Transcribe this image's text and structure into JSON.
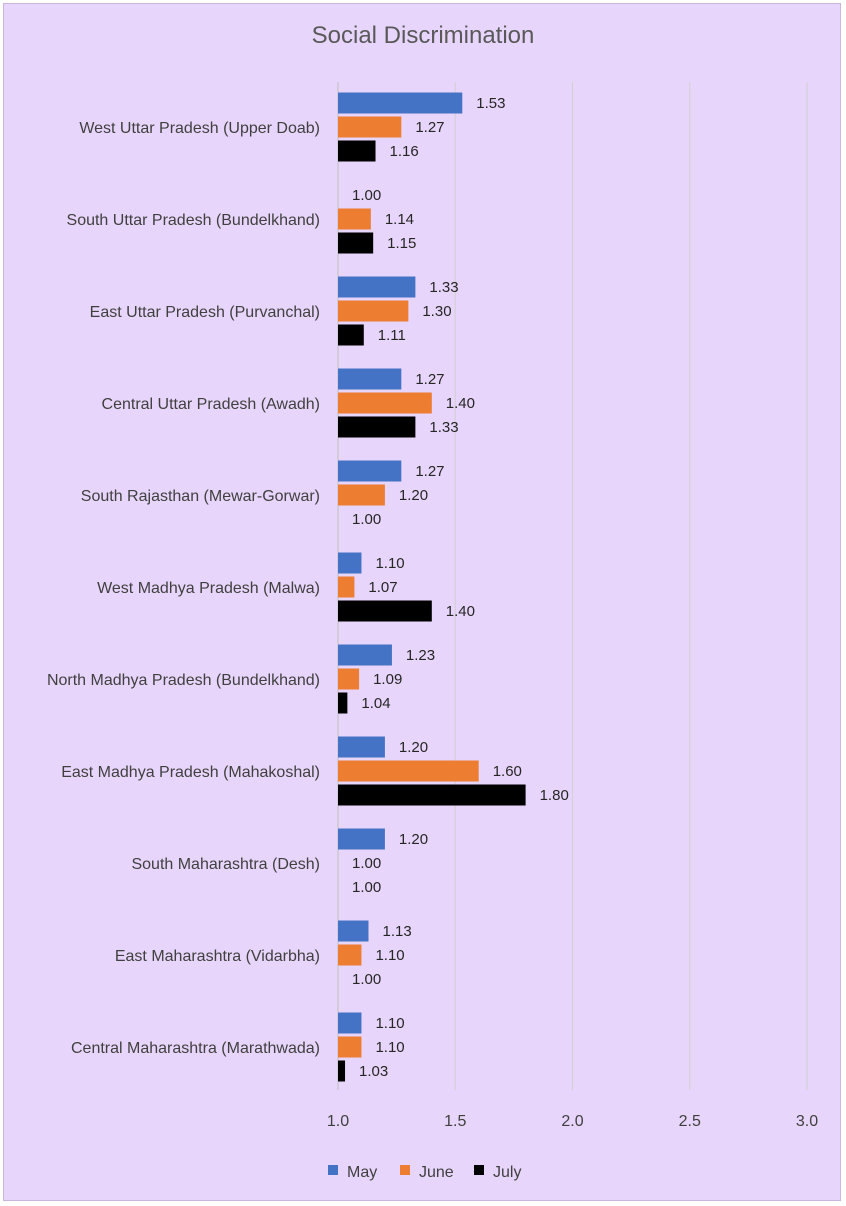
{
  "chart_data": {
    "type": "bar",
    "orientation": "horizontal",
    "title": "Social Discrimination",
    "categories": [
      "West Uttar Pradesh (Upper Doab)",
      "South Uttar Pradesh (Bundelkhand)",
      "East Uttar Pradesh (Purvanchal)",
      "Central Uttar Pradesh (Awadh)",
      "South Rajasthan (Mewar-Gorwar)",
      "West Madhya Pradesh (Malwa)",
      "North Madhya Pradesh (Bundelkhand)",
      "East Madhya Pradesh (Mahakoshal)",
      "South Maharashtra (Desh)",
      "East Maharashtra (Vidarbha)",
      "Central Maharashtra (Marathwada)"
    ],
    "series": [
      {
        "name": "May",
        "color": "#4472c4",
        "values": [
          1.53,
          1.0,
          1.33,
          1.27,
          1.27,
          1.1,
          1.23,
          1.2,
          1.2,
          1.13,
          1.1
        ],
        "labels": [
          "1.53",
          "1.00",
          "1.33",
          "1.27",
          "1.27",
          "1.10",
          "1.23",
          "1.20",
          "1.20",
          "1.13",
          "1.10"
        ]
      },
      {
        "name": "June",
        "color": "#ed7d31",
        "values": [
          1.27,
          1.14,
          1.3,
          1.4,
          1.2,
          1.07,
          1.09,
          1.6,
          1.0,
          1.1,
          1.1
        ],
        "labels": [
          "1.27",
          "1.14",
          "1.30",
          "1.40",
          "1.20",
          "1.07",
          "1.09",
          "1.60",
          "1.00",
          "1.10",
          "1.10"
        ]
      },
      {
        "name": "July",
        "color": "#000000",
        "values": [
          1.16,
          1.15,
          1.11,
          1.33,
          1.0,
          1.4,
          1.04,
          1.8,
          1.0,
          1.0,
          1.03
        ],
        "labels": [
          "1.16",
          "1.15",
          "1.11",
          "1.33",
          "1.00",
          "1.40",
          "1.04",
          "1.80",
          "1.00",
          "1.00",
          "1.03"
        ]
      }
    ],
    "xlim": [
      1.0,
      3.0
    ],
    "xticks": [
      "1.0",
      "1.5",
      "2.0",
      "2.5",
      "3.0"
    ],
    "grid": "vertical",
    "legend": "bottom"
  }
}
